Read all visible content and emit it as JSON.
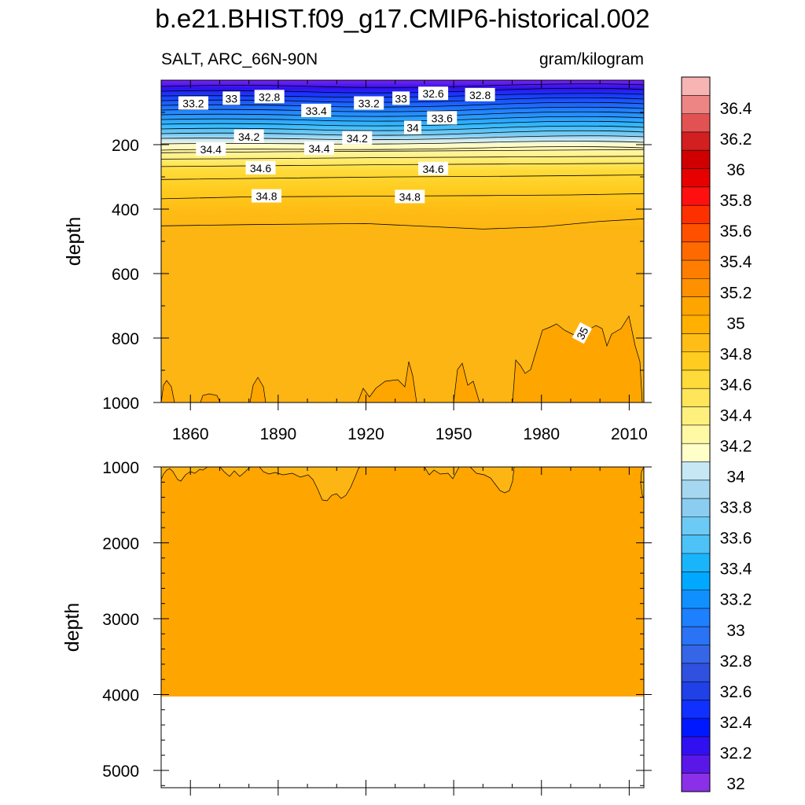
{
  "figure": {
    "title": "b.e21.BHIST.f09_g17.CMIP6-historical.002"
  },
  "chart_data": [
    {
      "type": "contour",
      "panel": "upper",
      "left_label": "SALT, ARC_66N-90N",
      "right_label": "gram/kilogram",
      "ylabel": "depth",
      "x_range": [
        1850,
        2015
      ],
      "y_range": [
        0,
        1000
      ],
      "y_inverted": true,
      "xticks": [
        1860,
        1890,
        1920,
        1950,
        1980,
        2010
      ],
      "yticks": [
        200,
        400,
        600,
        800,
        1000
      ],
      "isolines": [
        {
          "level": 34.4,
          "x": [
            1850,
            1890,
            1930,
            1970,
            2015
          ],
          "y": [
            225,
            222,
            220,
            218,
            215
          ]
        },
        {
          "level": 34.5,
          "x": [
            1850,
            1890,
            1930,
            1970,
            2015
          ],
          "y": [
            245,
            243,
            240,
            238,
            236
          ]
        },
        {
          "level": 34.6,
          "x": [
            1850,
            1890,
            1930,
            1970,
            2015
          ],
          "y": [
            268,
            265,
            262,
            260,
            258
          ]
        },
        {
          "level": 34.7,
          "x": [
            1850,
            1890,
            1930,
            1970,
            2015
          ],
          "y": [
            308,
            304,
            300,
            298,
            294
          ]
        },
        {
          "level": 34.8,
          "x": [
            1850,
            1880,
            1920,
            1960,
            1990,
            2015
          ],
          "y": [
            368,
            362,
            360,
            358,
            356,
            352
          ]
        },
        {
          "level": 34.9,
          "x": [
            1850,
            1880,
            1920,
            1960,
            1980,
            2000,
            2015
          ],
          "y": [
            452,
            448,
            445,
            462,
            455,
            438,
            430
          ]
        }
      ],
      "labels": [
        {
          "text": "33.2",
          "x": 1861,
          "y": 72
        },
        {
          "text": "33",
          "x": 1874,
          "y": 57
        },
        {
          "text": "32.8",
          "x": 1887,
          "y": 52
        },
        {
          "text": "33.4",
          "x": 1903,
          "y": 95
        },
        {
          "text": "33.2",
          "x": 1921,
          "y": 72
        },
        {
          "text": "33",
          "x": 1932,
          "y": 57
        },
        {
          "text": "32.6",
          "x": 1943,
          "y": 42
        },
        {
          "text": "32.8",
          "x": 1959,
          "y": 46
        },
        {
          "text": "33.6",
          "x": 1946,
          "y": 118
        },
        {
          "text": "34",
          "x": 1936,
          "y": 148
        },
        {
          "text": "34.2",
          "x": 1880,
          "y": 175
        },
        {
          "text": "34.2",
          "x": 1917,
          "y": 180
        },
        {
          "text": "34.4",
          "x": 1867,
          "y": 215
        },
        {
          "text": "34.4",
          "x": 1904,
          "y": 212
        },
        {
          "text": "34.6",
          "x": 1884,
          "y": 273
        },
        {
          "text": "34.6",
          "x": 1943,
          "y": 275
        },
        {
          "text": "34.8",
          "x": 1886,
          "y": 360
        },
        {
          "text": "34.8",
          "x": 1935,
          "y": 362
        },
        {
          "text": "35",
          "x": 1994,
          "y": 785
        }
      ]
    },
    {
      "type": "contour",
      "panel": "lower",
      "ylabel": "depth",
      "x_range": [
        1850,
        2015
      ],
      "y_range": [
        1000,
        5400
      ],
      "y_inverted": true,
      "yticks": [
        1000,
        2000,
        3000,
        4000,
        5000
      ],
      "filled_bottom_depth": 4120
    }
  ],
  "colorbar": {
    "levels": [
      "36.4",
      "36.2",
      "36",
      "35.8",
      "35.6",
      "35.4",
      "35.2",
      "35",
      "34.8",
      "34.6",
      "34.4",
      "34.2",
      "34",
      "33.8",
      "33.6",
      "33.4",
      "33.2",
      "33",
      "32.8",
      "32.6",
      "32.4",
      "32.2",
      "32"
    ],
    "colors": [
      "#f8b3b3",
      "#ee8585",
      "#e25252",
      "#d21f1f",
      "#d00000",
      "#e70000",
      "#ff1010",
      "#ff3000",
      "#ff5000",
      "#ff6a00",
      "#ff7e00",
      "#ff9100",
      "#ffa500",
      "#ffb000",
      "#ffbd15",
      "#ffcc1f",
      "#ffdb39",
      "#ffe55a",
      "#fff07e",
      "#fff8a4",
      "#ffffca",
      "#c6e8f5",
      "#a5d8f0",
      "#8acdf0",
      "#6ccaf5",
      "#4cc2f7",
      "#1ab4fb",
      "#00a8ff",
      "#1090ff",
      "#1c80ff",
      "#2a73f5",
      "#3666e8",
      "#3050e0",
      "#2040e8",
      "#1030ff",
      "#0018ff",
      "#3010f0",
      "#5a18e8",
      "#8a30e8"
    ]
  }
}
